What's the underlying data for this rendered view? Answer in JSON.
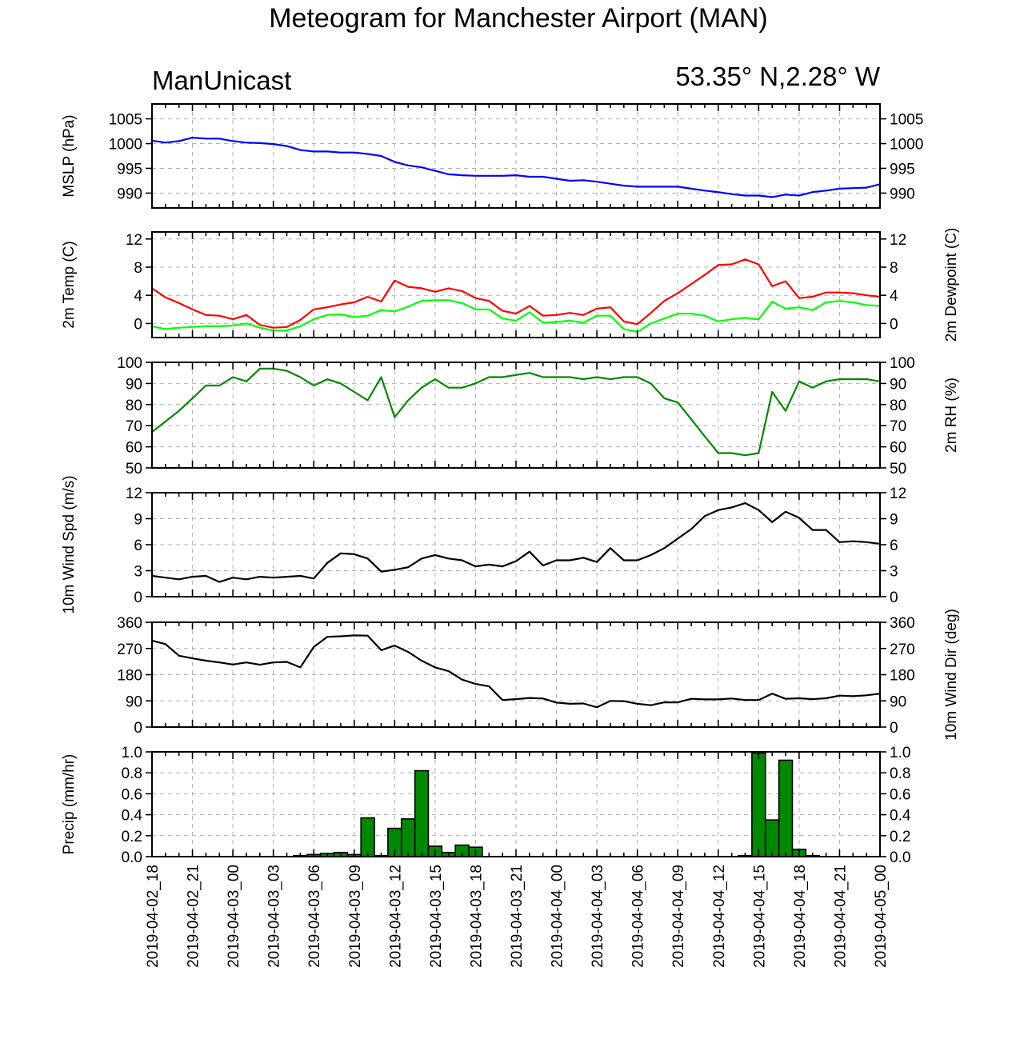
{
  "title": "Meteogram for Manchester Airport (MAN)",
  "left_subtitle": "ManUnicast",
  "right_subtitle": "53.35° N,2.28° W",
  "chart_data": {
    "type": "line",
    "x_tick_labels": [
      "2019-04-02_18",
      "2019-04-02_21",
      "2019-04-03_00",
      "2019-04-03_03",
      "2019-04-03_06",
      "2019-04-03_09",
      "2019-04-03_12",
      "2019-04-03_15",
      "2019-04-03_18",
      "2019-04-03_21",
      "2019-04-04_00",
      "2019-04-04_03",
      "2019-04-04_06",
      "2019-04-04_09",
      "2019-04-04_12",
      "2019-04-04_15",
      "2019-04-04_18",
      "2019-04-04_21",
      "2019-04-05_00"
    ],
    "x_range_hours": [
      0,
      54
    ],
    "panels": [
      {
        "name": "mslp",
        "type": "line",
        "ylabel_left": "MSLP (hPa)",
        "ylabel_right": "",
        "ylim": [
          987,
          1008
        ],
        "yticks": [
          990,
          995,
          1000,
          1005
        ],
        "series": [
          {
            "color": "#0000ff",
            "x": [
              0,
              1,
              2,
              3,
              4,
              5,
              6,
              7,
              8,
              9,
              10,
              11,
              12,
              13,
              14,
              15,
              16,
              17,
              18,
              19,
              20,
              21,
              22,
              23,
              24,
              25,
              26,
              27,
              28,
              29,
              30,
              31,
              32,
              33,
              34,
              35,
              36,
              37,
              38,
              39,
              40,
              41,
              42,
              43,
              44,
              45,
              46,
              47,
              48,
              49,
              50,
              51,
              52,
              53,
              54
            ],
            "y": [
              1000.6,
              1000.2,
              1000.5,
              1001.2,
              1001.0,
              1001.0,
              1000.5,
              1000.2,
              1000.1,
              999.9,
              999.5,
              998.7,
              998.4,
              998.4,
              998.2,
              998.2,
              997.9,
              997.5,
              996.3,
              995.6,
              995.2,
              994.5,
              993.8,
              993.6,
              993.5,
              993.5,
              993.5,
              993.6,
              993.3,
              993.3,
              992.9,
              992.5,
              992.6,
              992.3,
              991.9,
              991.5,
              991.3,
              991.3,
              991.3,
              991.3,
              990.9,
              990.5,
              990.2,
              989.8,
              989.5,
              989.5,
              989.2,
              989.7,
              989.5,
              990.2,
              990.5,
              990.9,
              991.0,
              991.1,
              991.8
            ]
          }
        ]
      },
      {
        "name": "temperature",
        "type": "line",
        "ylabel_left": "2m Temp (C)",
        "ylabel_right": "2m Dewpoint (C)",
        "ylim": [
          -2,
          13
        ],
        "yticks": [
          0,
          4,
          8,
          12
        ],
        "series": [
          {
            "color": "#ff0000",
            "x": [
              0,
              1,
              2,
              3,
              4,
              5,
              6,
              7,
              8,
              9,
              10,
              11,
              12,
              13,
              14,
              15,
              16,
              17,
              18,
              19,
              20,
              21,
              22,
              23,
              24,
              25,
              26,
              27,
              28,
              29,
              30,
              31,
              32,
              33,
              34,
              35,
              36,
              37,
              38,
              39,
              40,
              41,
              42,
              43,
              44,
              45,
              46,
              47,
              48,
              49,
              50,
              51,
              52,
              53,
              54
            ],
            "y": [
              5.0,
              3.7,
              2.9,
              2.0,
              1.2,
              1.1,
              0.6,
              1.2,
              -0.2,
              -0.6,
              -0.5,
              0.5,
              2.0,
              2.3,
              2.7,
              3.0,
              3.8,
              3.1,
              6.1,
              5.2,
              5.0,
              4.5,
              5.0,
              4.6,
              3.6,
              3.2,
              1.8,
              1.4,
              2.5,
              1.1,
              1.2,
              1.5,
              1.2,
              2.1,
              2.3,
              0.3,
              -0.1,
              1.5,
              3.2,
              4.3,
              5.6,
              6.9,
              8.3,
              8.4,
              9.1,
              8.4,
              5.3,
              6.0,
              3.6,
              3.8,
              4.4,
              4.4,
              4.3,
              4.0,
              3.8
            ]
          },
          {
            "color": "#00ff00",
            "x": [
              0,
              1,
              2,
              3,
              4,
              5,
              6,
              7,
              8,
              9,
              10,
              11,
              12,
              13,
              14,
              15,
              16,
              17,
              18,
              19,
              20,
              21,
              22,
              23,
              24,
              25,
              26,
              27,
              28,
              29,
              30,
              31,
              32,
              33,
              34,
              35,
              36,
              37,
              38,
              39,
              40,
              41,
              42,
              43,
              44,
              45,
              46,
              47,
              48,
              49,
              50,
              51,
              52,
              53,
              54
            ],
            "y": [
              -0.4,
              -0.8,
              -0.6,
              -0.5,
              -0.4,
              -0.4,
              -0.3,
              0.0,
              -0.6,
              -1.0,
              -1.0,
              -0.4,
              0.6,
              1.2,
              1.3,
              0.9,
              1.1,
              1.9,
              1.7,
              2.4,
              3.2,
              3.3,
              3.3,
              2.9,
              2.0,
              2.0,
              0.7,
              0.4,
              1.6,
              0.1,
              0.2,
              0.4,
              0.1,
              1.1,
              1.1,
              -0.8,
              -1.2,
              0.0,
              0.7,
              1.4,
              1.4,
              1.1,
              0.3,
              0.6,
              0.8,
              0.6,
              3.1,
              2.1,
              2.3,
              1.9,
              3.0,
              3.2,
              3.0,
              2.6,
              2.5
            ]
          }
        ]
      },
      {
        "name": "relative_humidity",
        "type": "line",
        "ylabel_left": "",
        "ylabel_right": "2m RH (%)",
        "ylim": [
          50,
          100
        ],
        "yticks": [
          50,
          60,
          70,
          80,
          90,
          100
        ],
        "series": [
          {
            "color": "#008800",
            "x": [
              0,
              1,
              2,
              3,
              4,
              5,
              6,
              7,
              8,
              9,
              10,
              11,
              12,
              13,
              14,
              15,
              16,
              17,
              18,
              19,
              20,
              21,
              22,
              23,
              24,
              25,
              26,
              27,
              28,
              29,
              30,
              31,
              32,
              33,
              34,
              35,
              36,
              37,
              38,
              39,
              40,
              41,
              42,
              43,
              44,
              45,
              46,
              47,
              48,
              49,
              50,
              51,
              52,
              53,
              54
            ],
            "y": [
              67,
              72,
              77,
              83,
              89,
              89,
              93,
              91,
              97,
              97,
              96,
              93,
              89,
              92,
              90,
              86,
              82,
              93,
              74,
              82,
              88,
              92,
              88,
              88,
              90,
              93,
              93,
              94,
              95,
              93,
              93,
              93,
              92,
              93,
              92,
              93,
              93,
              90,
              83,
              81,
              73,
              65,
              57,
              57,
              56,
              57,
              86,
              77,
              91,
              88,
              91,
              92,
              92,
              92,
              91
            ]
          }
        ]
      },
      {
        "name": "wind_speed",
        "type": "line",
        "ylabel_left": "10m Wind Spd (m/s)",
        "ylabel_right": "",
        "ylim": [
          0,
          12
        ],
        "yticks": [
          0,
          3,
          6,
          9,
          12
        ],
        "series": [
          {
            "color": "#000000",
            "x": [
              0,
              1,
              2,
              3,
              4,
              5,
              6,
              7,
              8,
              9,
              10,
              11,
              12,
              13,
              14,
              15,
              16,
              17,
              18,
              19,
              20,
              21,
              22,
              23,
              24,
              25,
              26,
              27,
              28,
              29,
              30,
              31,
              32,
              33,
              34,
              35,
              36,
              37,
              38,
              39,
              40,
              41,
              42,
              43,
              44,
              45,
              46,
              47,
              48,
              49,
              50,
              51,
              52,
              53,
              54
            ],
            "y": [
              2.4,
              2.2,
              2.0,
              2.3,
              2.4,
              1.7,
              2.2,
              2.0,
              2.3,
              2.2,
              2.3,
              2.4,
              2.1,
              3.9,
              5.0,
              4.9,
              4.4,
              2.9,
              3.1,
              3.4,
              4.4,
              4.8,
              4.4,
              4.2,
              3.5,
              3.7,
              3.5,
              4.1,
              5.2,
              3.6,
              4.2,
              4.2,
              4.5,
              4.0,
              5.6,
              4.2,
              4.2,
              4.8,
              5.6,
              6.7,
              7.8,
              9.3,
              10.0,
              10.3,
              10.8,
              10.0,
              8.6,
              9.8,
              9.1,
              7.7,
              7.7,
              6.3,
              6.4,
              6.3,
              6.1
            ]
          }
        ]
      },
      {
        "name": "wind_direction",
        "type": "line",
        "ylabel_left": "",
        "ylabel_right": "10m Wind Dir (deg)",
        "ylim": [
          0,
          360
        ],
        "yticks": [
          0,
          90,
          180,
          270,
          360
        ],
        "series": [
          {
            "color": "#000000",
            "x": [
              0,
              1,
              2,
              3,
              4,
              5,
              6,
              7,
              8,
              9,
              10,
              11,
              12,
              13,
              14,
              15,
              16,
              17,
              18,
              19,
              20,
              21,
              22,
              23,
              24,
              25,
              26,
              27,
              28,
              29,
              30,
              31,
              32,
              33,
              34,
              35,
              36,
              37,
              38,
              39,
              40,
              41,
              42,
              43,
              44,
              45,
              46,
              47,
              48,
              49,
              50,
              51,
              52,
              53,
              54
            ],
            "y": [
              297,
              285,
              245,
              236,
              228,
              222,
              215,
              222,
              214,
              222,
              224,
              205,
              275,
              310,
              312,
              315,
              314,
              264,
              280,
              258,
              228,
              205,
              192,
              163,
              148,
              140,
              93,
              96,
              100,
              98,
              84,
              80,
              81,
              68,
              90,
              89,
              80,
              75,
              85,
              85,
              97,
              95,
              95,
              98,
              93,
              93,
              115,
              97,
              99,
              96,
              99,
              108,
              106,
              109,
              115
            ]
          }
        ]
      },
      {
        "name": "precipitation",
        "type": "bar",
        "ylabel_left": "Precip (mm/hr)",
        "ylabel_right": "",
        "ylim": [
          0,
          1
        ],
        "yticks": [
          0.0,
          0.2,
          0.4,
          0.6,
          0.8,
          1.0
        ],
        "bar_color": "#008800",
        "bars": [
          {
            "x": 11,
            "value": 0.01
          },
          {
            "x": 12,
            "value": 0.02
          },
          {
            "x": 13,
            "value": 0.03
          },
          {
            "x": 14,
            "value": 0.04
          },
          {
            "x": 15,
            "value": 0.02
          },
          {
            "x": 16,
            "value": 0.37
          },
          {
            "x": 17,
            "value": 0.01
          },
          {
            "x": 18,
            "value": 0.27
          },
          {
            "x": 19,
            "value": 0.36
          },
          {
            "x": 20,
            "value": 0.82
          },
          {
            "x": 21,
            "value": 0.1
          },
          {
            "x": 22,
            "value": 0.04
          },
          {
            "x": 23,
            "value": 0.11
          },
          {
            "x": 24,
            "value": 0.09
          },
          {
            "x": 44,
            "value": 0.01
          },
          {
            "x": 45,
            "value": 0.99
          },
          {
            "x": 46,
            "value": 0.35
          },
          {
            "x": 47,
            "value": 0.92
          },
          {
            "x": 48,
            "value": 0.07
          },
          {
            "x": 49,
            "value": 0.01
          }
        ]
      }
    ]
  }
}
